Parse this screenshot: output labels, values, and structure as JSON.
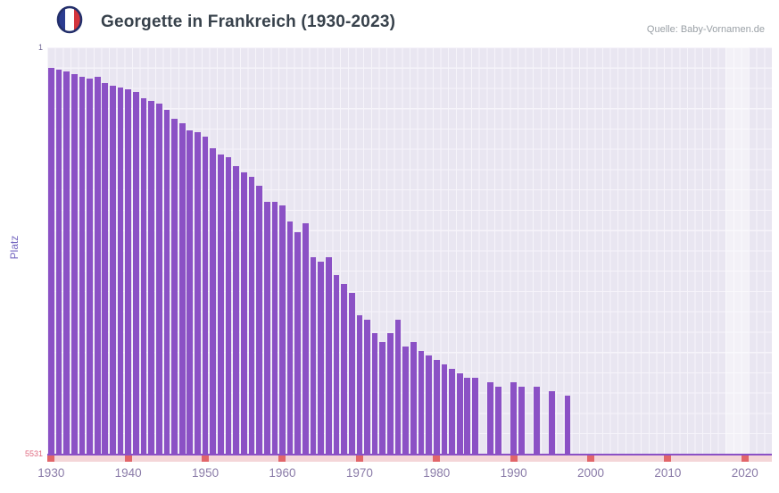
{
  "header": {
    "title": "Georgette in Frankreich (1930-2023)",
    "source": "Quelle: Baby-Vornamen.de"
  },
  "flag_colors": {
    "blue": "#2b3c90",
    "white": "#ffffff",
    "red": "#d3343c",
    "ring": "#232f6b"
  },
  "chart_data": {
    "type": "bar",
    "title": "Georgette in Frankreich (1930-2023)",
    "xlabel": "",
    "ylabel": "Platz",
    "y_axis": {
      "min": 1,
      "max": 5531,
      "inverted": true,
      "top_label": "1",
      "bottom_label": "5531"
    },
    "x_ticks": [
      1930,
      1940,
      1950,
      1960,
      1970,
      1980,
      1990,
      2000,
      2010,
      2020
    ],
    "years": [
      1930,
      1931,
      1932,
      1933,
      1934,
      1935,
      1936,
      1937,
      1938,
      1939,
      1940,
      1941,
      1942,
      1943,
      1944,
      1945,
      1946,
      1947,
      1948,
      1949,
      1950,
      1951,
      1952,
      1953,
      1954,
      1955,
      1956,
      1957,
      1958,
      1959,
      1960,
      1961,
      1962,
      1963,
      1964,
      1965,
      1966,
      1967,
      1968,
      1969,
      1970,
      1971,
      1972,
      1973,
      1974,
      1975,
      1976,
      1977,
      1978,
      1979,
      1980,
      1981,
      1982,
      1983,
      1984,
      1985,
      1986,
      1987,
      1988,
      1989,
      1990,
      1991,
      1992,
      1993,
      1994,
      1995,
      1996,
      1997,
      1998,
      1999,
      2000,
      2001,
      2002,
      2003,
      2004,
      2005,
      2006,
      2007,
      2008,
      2009,
      2010,
      2011,
      2012,
      2013,
      2014,
      2015,
      2016,
      2017,
      2018,
      2019,
      2020,
      2021,
      2022,
      2023
    ],
    "ranks": [
      280,
      304,
      328,
      365,
      401,
      425,
      401,
      486,
      523,
      547,
      571,
      608,
      693,
      729,
      766,
      851,
      972,
      1033,
      1130,
      1154,
      1215,
      1373,
      1458,
      1494,
      1616,
      1701,
      1762,
      1883,
      2102,
      2102,
      2151,
      2369,
      2515,
      2394,
      2856,
      2917,
      2856,
      3099,
      3220,
      3342,
      3645,
      3706,
      3889,
      4010,
      3889,
      3706,
      4071,
      4010,
      4132,
      4192,
      4253,
      4314,
      4375,
      4435,
      4497,
      4497,
      null,
      4558,
      4620,
      null,
      4558,
      4620,
      null,
      4620,
      null,
      4680,
      null,
      4740,
      null,
      null,
      null,
      null,
      null,
      null,
      null,
      null,
      null,
      null,
      null,
      null,
      null,
      null,
      null,
      null,
      null,
      null,
      null,
      null,
      null,
      null,
      null,
      null,
      null,
      null
    ],
    "bar_color": "#8b51c5",
    "plot_background": "#e9e6f1",
    "missing_strip_color": "#f4d6d8",
    "decade_mark_color": "#e2666a",
    "highlight_years": [
      2018,
      2020
    ],
    "legend": "none",
    "grid": true
  }
}
